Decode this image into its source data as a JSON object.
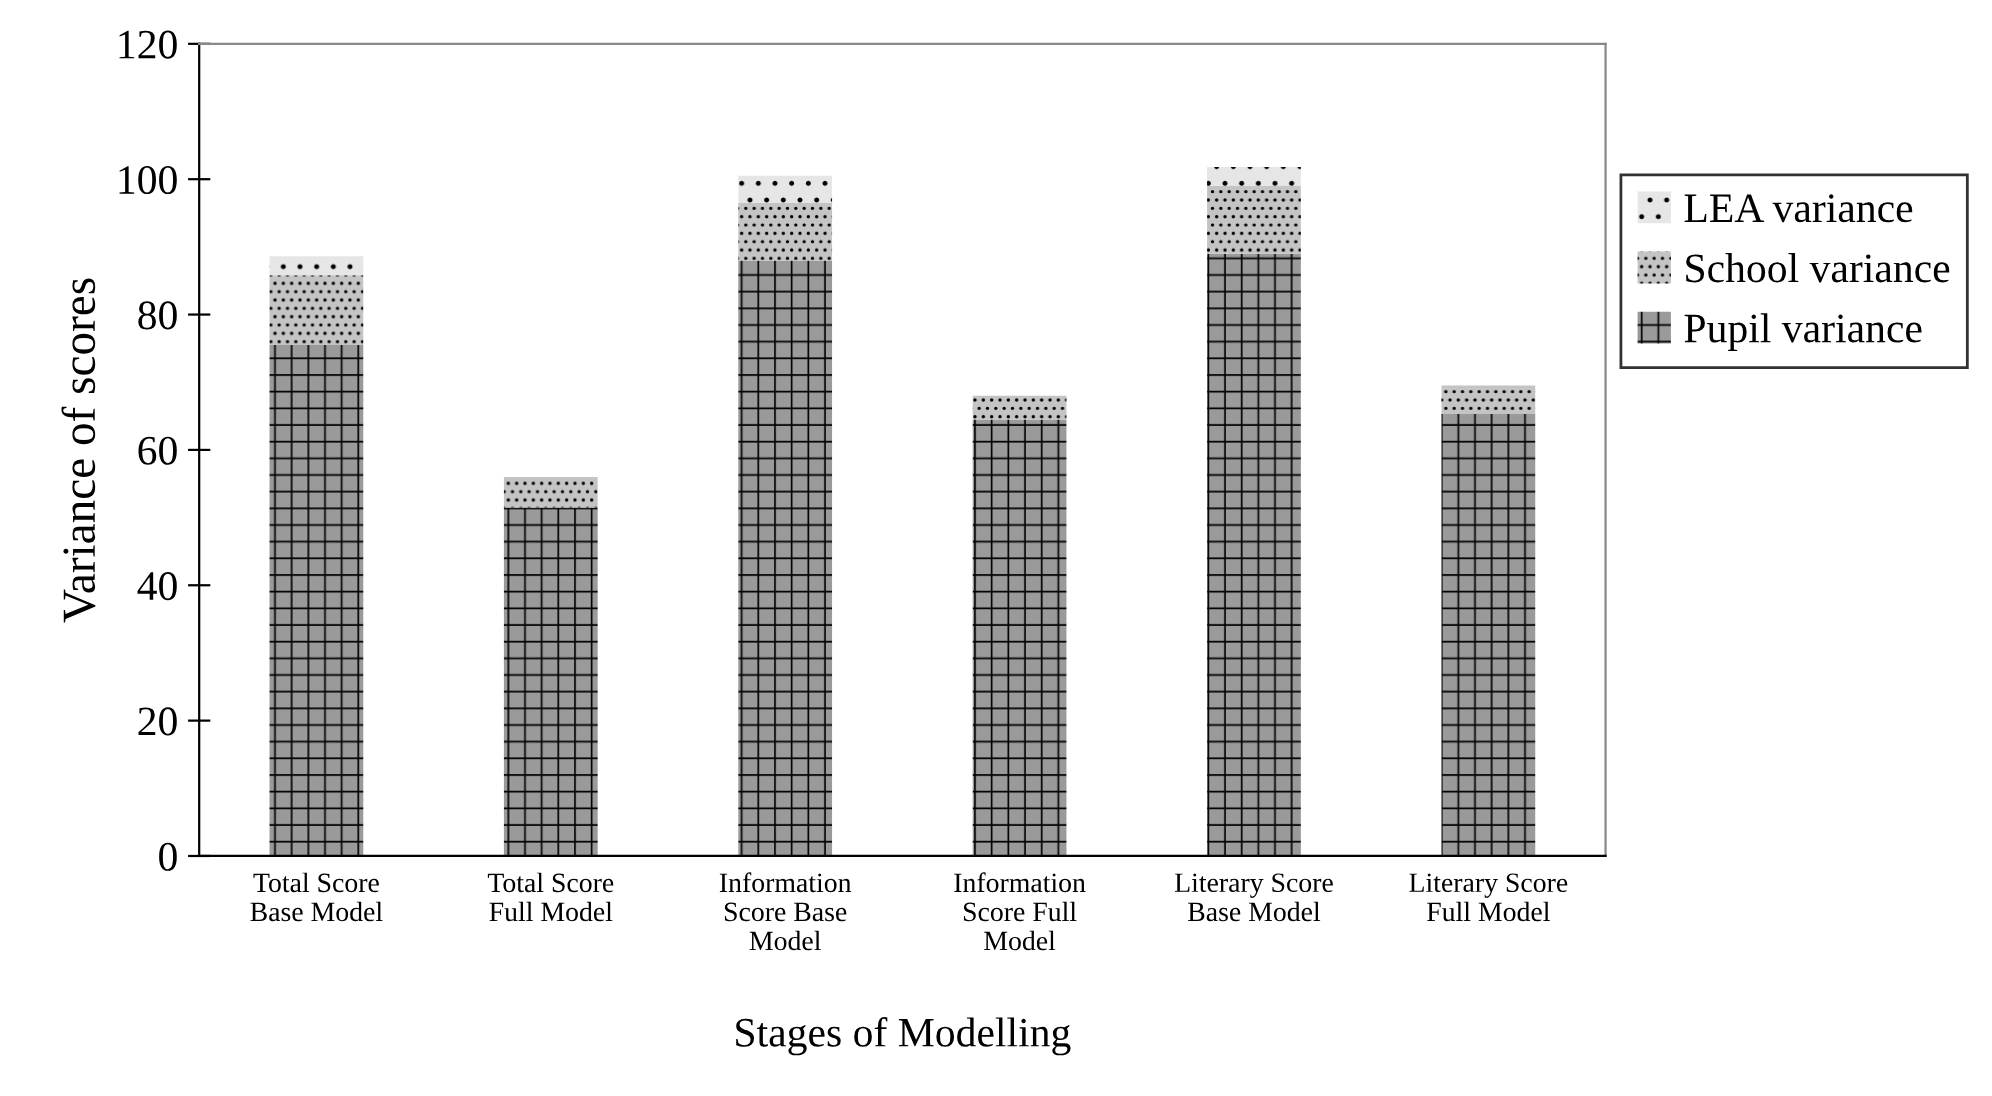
{
  "chart_data": {
    "type": "bar",
    "stacked": true,
    "xlabel": "Stages of Modelling",
    "ylabel": "Variance of scores",
    "categories": [
      "Total Score\nBase Model",
      "Total Score\nFull Model",
      "Information\nScore Base\nModel",
      "Information\nScore Full\nModel",
      "Literary Score\nBase Model",
      "Literary Score\nFull Model"
    ],
    "series": [
      {
        "name": "Pupil variance",
        "color": "#9a9a9a",
        "values": [
          75.5,
          51.5,
          88,
          64.5,
          89,
          65.3
        ]
      },
      {
        "name": "School variance",
        "color": "#c4c4c4",
        "values": [
          10.3,
          4.5,
          8.5,
          3.5,
          10,
          4.2
        ]
      },
      {
        "name": "LEA variance",
        "color": "#e6e6e6",
        "values": [
          2.8,
          null,
          4,
          null,
          2.8,
          null
        ]
      }
    ],
    "ylim": [
      0,
      120
    ],
    "yticks": [
      0,
      20,
      40,
      60,
      80,
      100,
      120
    ],
    "grid": false,
    "legend": "right"
  }
}
